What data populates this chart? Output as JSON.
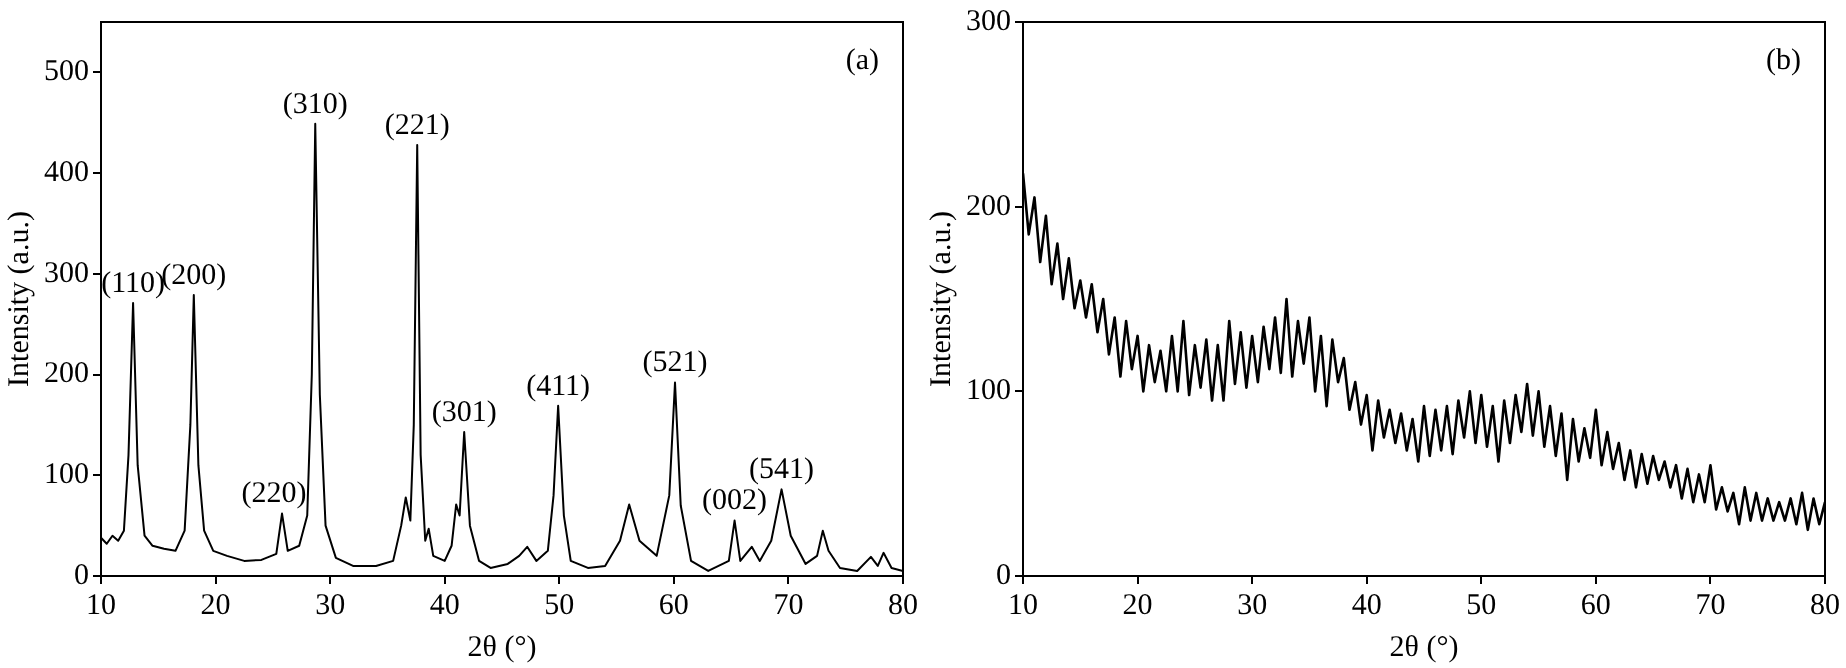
{
  "chart_data": [
    {
      "type": "line",
      "xlabel": "2θ (°)",
      "ylabel": "Intensity (a.u.)",
      "xlim": [
        10,
        80
      ],
      "xticks": [
        10,
        20,
        30,
        40,
        50,
        60,
        70,
        80
      ],
      "ylim": [
        0,
        550
      ],
      "yticks": [
        0,
        100,
        200,
        300,
        400,
        500
      ],
      "grid": false,
      "legend": false,
      "marker": "none",
      "line_style": "solid",
      "series": [
        {
          "color": "#000000",
          "x": [
            10,
            10.5,
            11,
            11.5,
            12,
            12.4,
            12.8,
            13.2,
            13.8,
            14.5,
            15.5,
            16.5,
            17.3,
            17.8,
            18.1,
            18.5,
            19,
            19.8,
            21,
            22.5,
            24,
            25.3,
            25.8,
            26.3,
            27.3,
            28,
            28.4,
            28.7,
            29.1,
            29.6,
            30.5,
            32,
            34,
            35.5,
            36.2,
            36.6,
            37,
            37.3,
            37.6,
            37.9,
            38.3,
            38.6,
            39,
            40,
            40.6,
            41,
            41.3,
            41.7,
            42.2,
            43,
            44,
            45.5,
            46.5,
            47.2,
            48,
            49,
            49.5,
            49.9,
            50.4,
            51,
            52.5,
            54,
            55.3,
            56.1,
            57,
            58.5,
            59.6,
            60.1,
            60.6,
            61.5,
            63,
            64.8,
            65.3,
            65.8,
            66.8,
            67.5,
            68.5,
            69.4,
            70.2,
            71.5,
            72.5,
            73,
            73.5,
            74.5,
            76,
            77.2,
            77.8,
            78.3,
            79,
            80
          ],
          "values": [
            38,
            32,
            40,
            35,
            45,
            120,
            271,
            110,
            40,
            30,
            27,
            25,
            45,
            150,
            279,
            110,
            45,
            25,
            20,
            15,
            16,
            22,
            62,
            25,
            30,
            60,
            200,
            449,
            180,
            50,
            18,
            10,
            10,
            15,
            50,
            78,
            55,
            150,
            428,
            120,
            35,
            47,
            20,
            15,
            30,
            71,
            60,
            143,
            50,
            15,
            8,
            12,
            20,
            29,
            15,
            25,
            80,
            169,
            60,
            15,
            8,
            10,
            35,
            71,
            35,
            20,
            80,
            192,
            70,
            15,
            5,
            15,
            55,
            15,
            29,
            15,
            35,
            86,
            40,
            12,
            20,
            45,
            25,
            8,
            5,
            19,
            10,
            23,
            8,
            5
          ]
        }
      ],
      "annotations": [
        "(a)",
        {
          "text": "(110)",
          "x": 12.8,
          "y": 271
        },
        {
          "text": "(200)",
          "x": 18.1,
          "y": 279
        },
        {
          "text": "(220)",
          "x": 25.8,
          "y": 62
        },
        {
          "text": "(310)",
          "x": 28.7,
          "y": 449
        },
        {
          "text": "(221)",
          "x": 37.6,
          "y": 428
        },
        {
          "text": "(301)",
          "x": 41.7,
          "y": 143
        },
        {
          "text": "(411)",
          "x": 49.9,
          "y": 169
        },
        {
          "text": "(521)",
          "x": 60.1,
          "y": 192
        },
        {
          "text": "(002)",
          "x": 65.3,
          "y": 55
        },
        {
          "text": "(541)",
          "x": 69.4,
          "y": 86
        }
      ]
    },
    {
      "type": "line",
      "xlabel": "2θ (°)",
      "ylabel": "Intensity (a.u.)",
      "xlim": [
        10,
        80
      ],
      "xticks": [
        10,
        20,
        30,
        40,
        50,
        60,
        70,
        80
      ],
      "ylim": [
        0,
        300
      ],
      "yticks": [
        0,
        100,
        200,
        300
      ],
      "grid": false,
      "legend": false,
      "marker": "none",
      "line_style": "solid",
      "series": [
        {
          "color": "#000000",
          "x": [
            10,
            10.5,
            11,
            11.5,
            12,
            12.5,
            13,
            13.5,
            14,
            14.5,
            15,
            15.5,
            16,
            16.5,
            17,
            17.5,
            18,
            18.5,
            19,
            19.5,
            20,
            20.5,
            21,
            21.5,
            22,
            22.5,
            23,
            23.5,
            24,
            24.5,
            25,
            25.5,
            26,
            26.5,
            27,
            27.5,
            28,
            28.5,
            29,
            29.5,
            30,
            30.5,
            31,
            31.5,
            32,
            32.5,
            33,
            33.5,
            34,
            34.5,
            35,
            35.5,
            36,
            36.5,
            37,
            37.5,
            38,
            38.5,
            39,
            39.5,
            40,
            40.5,
            41,
            41.5,
            42,
            42.5,
            43,
            43.5,
            44,
            44.5,
            45,
            45.5,
            46,
            46.5,
            47,
            47.5,
            48,
            48.5,
            49,
            49.5,
            50,
            50.5,
            51,
            51.5,
            52,
            52.5,
            53,
            53.5,
            54,
            54.5,
            55,
            55.5,
            56,
            56.5,
            57,
            57.5,
            58,
            58.5,
            59,
            59.5,
            60,
            60.5,
            61,
            61.5,
            62,
            62.5,
            63,
            63.5,
            64,
            64.5,
            65,
            65.5,
            66,
            66.5,
            67,
            67.5,
            68,
            68.5,
            69,
            69.5,
            70,
            70.5,
            71,
            71.5,
            72,
            72.5,
            73,
            73.5,
            74,
            74.5,
            75,
            75.5,
            76,
            76.5,
            77,
            77.5,
            78,
            78.5,
            79,
            79.5,
            80
          ],
          "values": [
            218,
            185,
            205,
            170,
            195,
            158,
            180,
            150,
            172,
            145,
            160,
            140,
            158,
            132,
            150,
            120,
            140,
            108,
            138,
            112,
            130,
            100,
            125,
            105,
            122,
            100,
            130,
            100,
            138,
            98,
            125,
            102,
            128,
            95,
            125,
            95,
            138,
            104,
            132,
            102,
            130,
            105,
            135,
            112,
            140,
            110,
            150,
            108,
            138,
            115,
            140,
            100,
            130,
            92,
            128,
            105,
            118,
            90,
            105,
            82,
            98,
            68,
            95,
            75,
            90,
            72,
            88,
            68,
            85,
            62,
            92,
            65,
            90,
            68,
            92,
            66,
            95,
            75,
            100,
            72,
            98,
            70,
            92,
            62,
            95,
            72,
            98,
            78,
            104,
            76,
            100,
            70,
            92,
            65,
            88,
            52,
            85,
            62,
            80,
            64,
            90,
            60,
            78,
            58,
            72,
            52,
            68,
            48,
            66,
            50,
            65,
            52,
            62,
            48,
            60,
            42,
            58,
            40,
            55,
            40,
            60,
            36,
            48,
            35,
            45,
            28,
            48,
            30,
            45,
            30,
            42,
            30,
            40,
            30,
            42,
            28,
            45,
            25,
            42,
            28,
            40
          ]
        }
      ],
      "annotations": [
        "(b)"
      ]
    }
  ]
}
